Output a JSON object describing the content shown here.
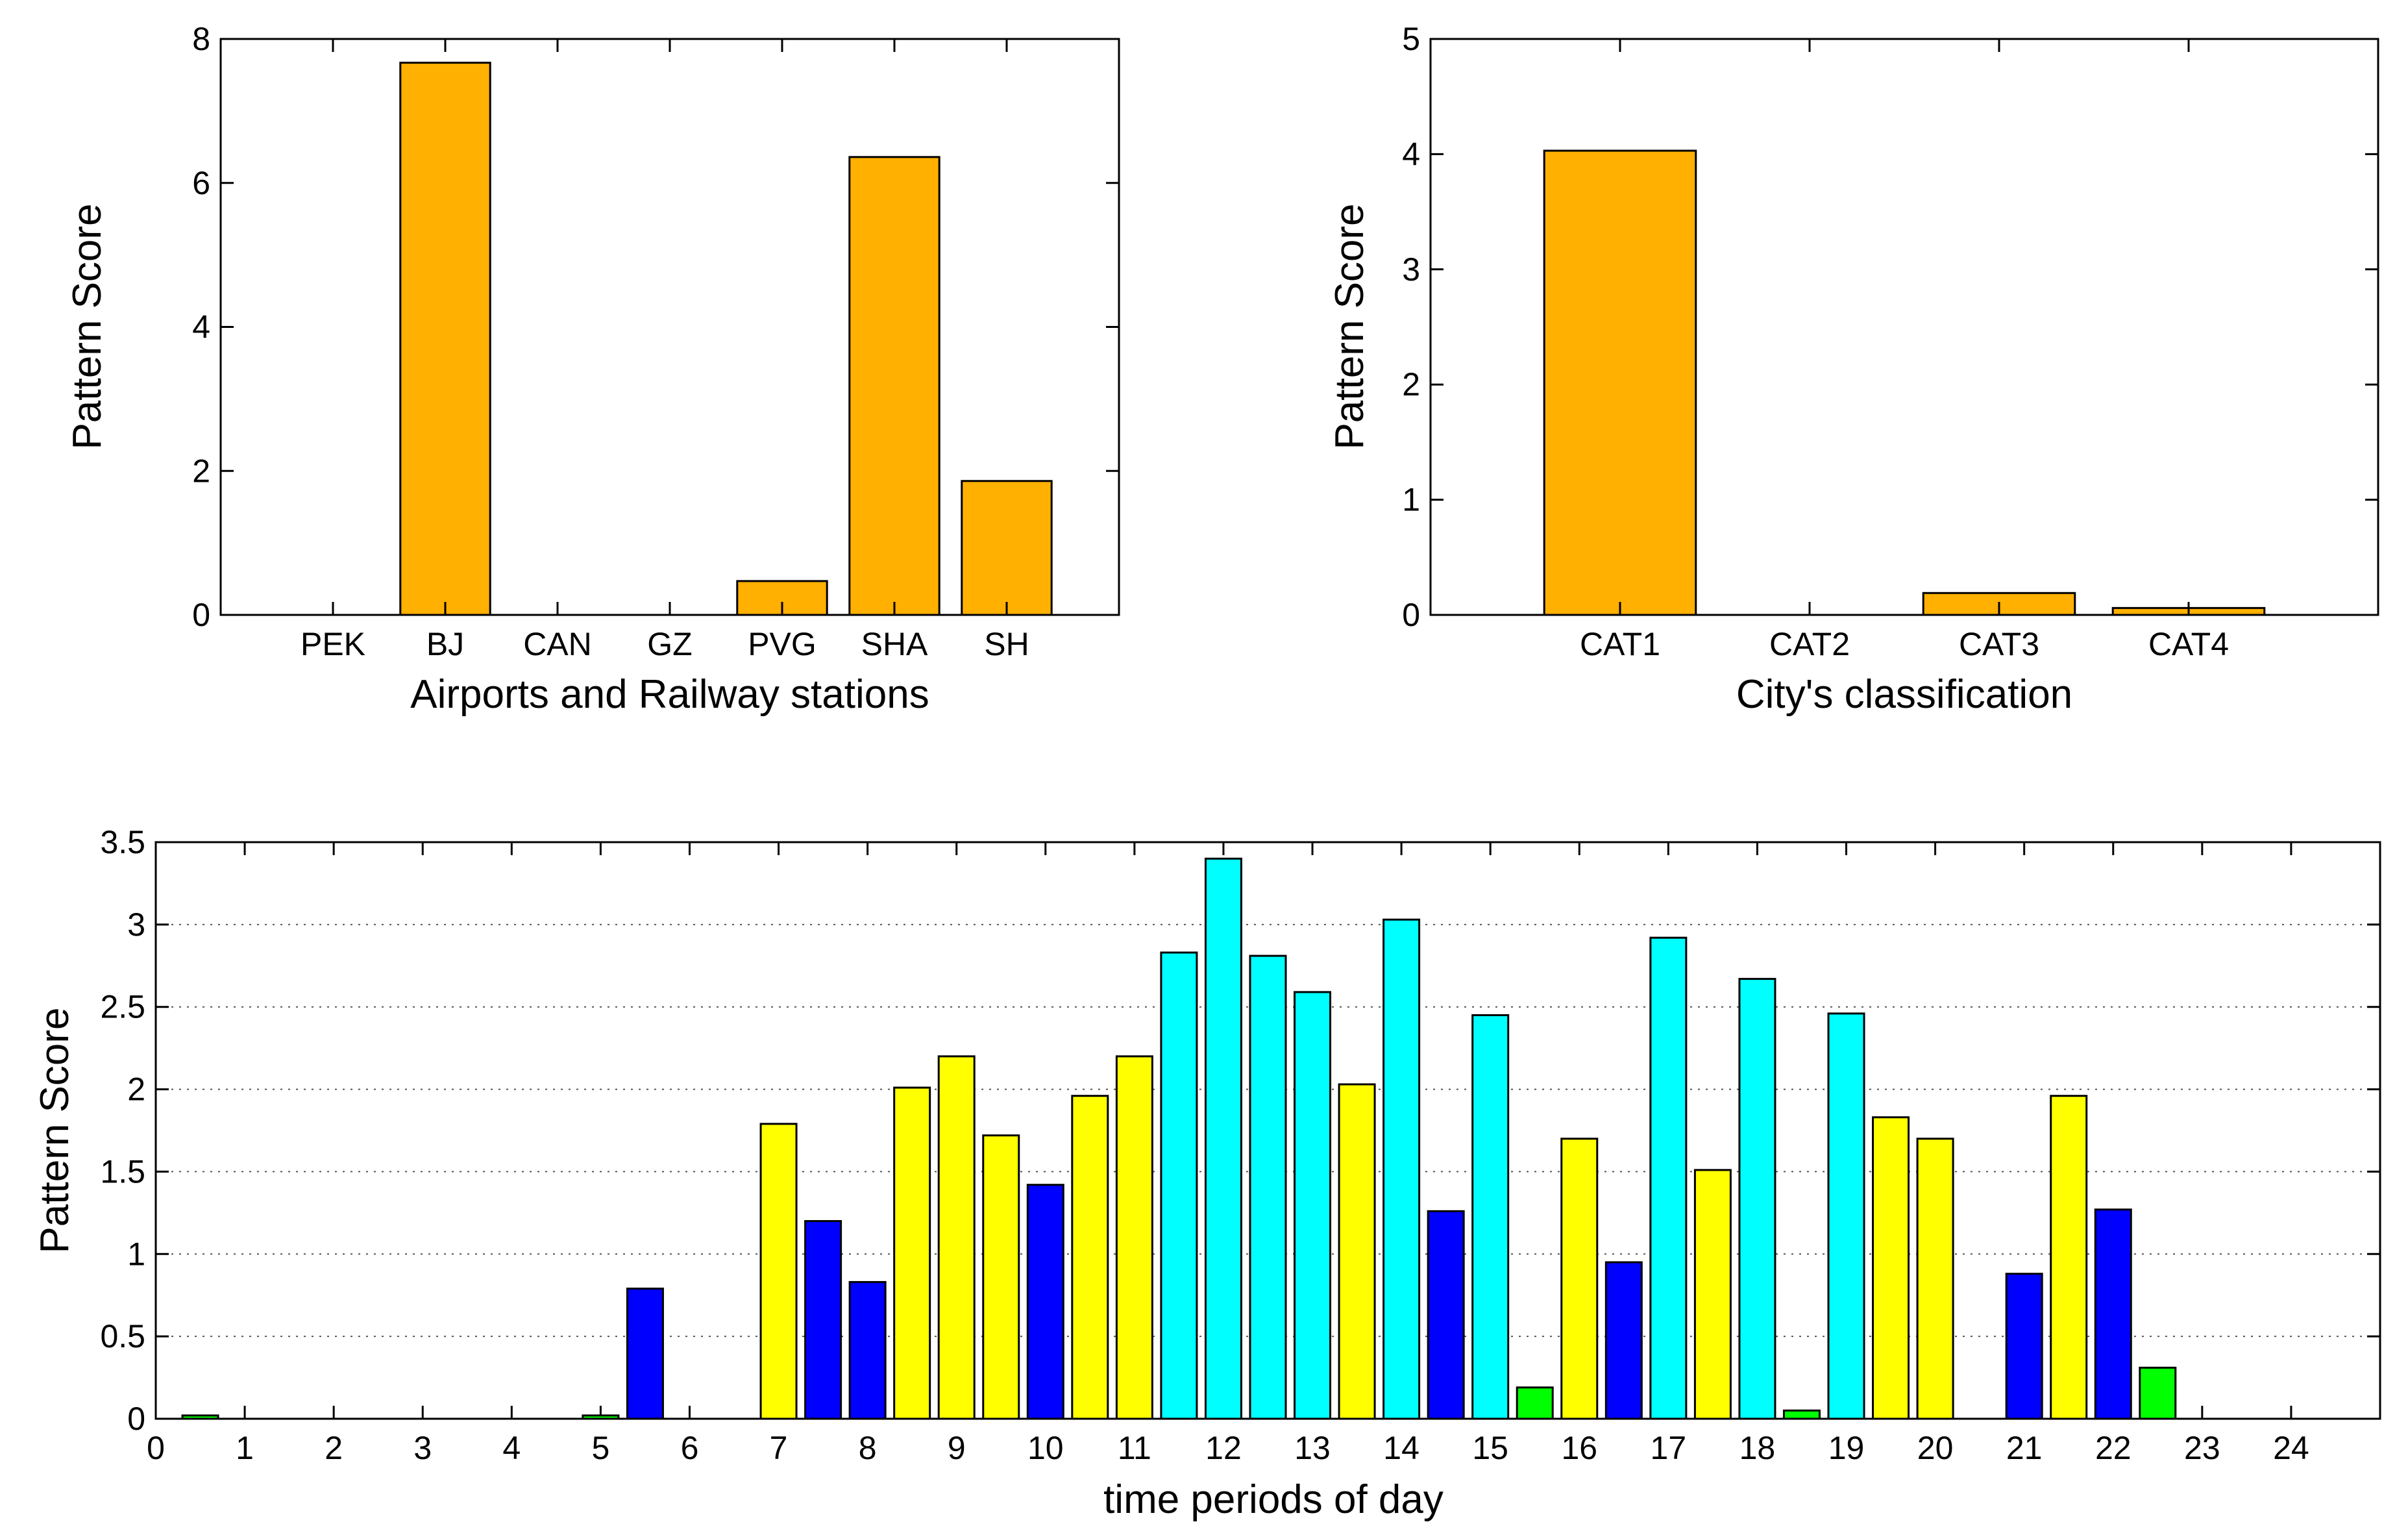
{
  "colors": {
    "orange": "#FFB000",
    "yellow": "#FFFF00",
    "cyan": "#00FFFF",
    "blue": "#0000FF",
    "green": "#00FF00",
    "edge": "#000000"
  },
  "chart_data": [
    {
      "type": "bar",
      "id": "airports",
      "xlabel": "Airports and Railway stations",
      "ylabel": "Pattern Score",
      "ylim": [
        0,
        8
      ],
      "yticks": [
        "0",
        "2",
        "4",
        "6",
        "8"
      ],
      "categories": [
        "PEK",
        "BJ",
        "CAN",
        "GZ",
        "PVG",
        "SHA",
        "SH"
      ],
      "values": [
        0,
        7.67,
        0,
        0,
        0.47,
        6.36,
        1.86
      ],
      "color_key": "orange"
    },
    {
      "type": "bar",
      "id": "city",
      "xlabel": "City's classification",
      "ylabel": "Pattern Score",
      "ylim": [
        0,
        5
      ],
      "yticks": [
        "0",
        "1",
        "2",
        "3",
        "4",
        "5"
      ],
      "categories": [
        "CAT1",
        "CAT2",
        "CAT3",
        "CAT4"
      ],
      "values": [
        4.03,
        0,
        0.19,
        0.06
      ],
      "color_key": "orange"
    },
    {
      "type": "bar",
      "id": "time",
      "xlabel": "time periods of day",
      "ylabel": "Pattern Score",
      "ylim": [
        0,
        3.5
      ],
      "yticks": [
        "0",
        "0.5",
        "1",
        "1.5",
        "2",
        "2.5",
        "3",
        "3.5"
      ],
      "xlim": [
        0,
        25
      ],
      "xticks": [
        "0",
        "1",
        "2",
        "3",
        "4",
        "5",
        "6",
        "7",
        "8",
        "9",
        "10",
        "11",
        "12",
        "13",
        "14",
        "15",
        "16",
        "17",
        "18",
        "19",
        "20",
        "21",
        "22",
        "23",
        "24"
      ],
      "grid": "dotted horizontal",
      "x": [
        0.5,
        1.5,
        2.5,
        3.5,
        4.5,
        5,
        5.5,
        7,
        7.5,
        8,
        8.5,
        9,
        9.5,
        10,
        10.5,
        11,
        11.5,
        12,
        12.5,
        13,
        13.5,
        14,
        14.5,
        15,
        15.5,
        16,
        16.5,
        17,
        17.5,
        18,
        18.5,
        19,
        19.5,
        20,
        21,
        21.5,
        22,
        22.5
      ],
      "values": [
        0.02,
        0,
        0,
        0,
        0,
        0.02,
        0.79,
        1.79,
        1.2,
        0.83,
        2.01,
        2.2,
        1.72,
        1.42,
        1.96,
        2.2,
        2.83,
        3.4,
        2.81,
        2.59,
        2.03,
        3.03,
        1.26,
        2.45,
        0.19,
        1.7,
        0.95,
        2.92,
        1.51,
        2.67,
        0.05,
        2.46,
        1.83,
        1.7,
        0.88,
        1.96,
        1.27,
        0.31
      ],
      "colors": [
        "green",
        "green",
        "green",
        "green",
        "green",
        "green",
        "blue",
        "yellow",
        "blue",
        "blue",
        "yellow",
        "yellow",
        "yellow",
        "blue",
        "yellow",
        "yellow",
        "cyan",
        "cyan",
        "cyan",
        "cyan",
        "yellow",
        "cyan",
        "blue",
        "cyan",
        "green",
        "yellow",
        "blue",
        "cyan",
        "yellow",
        "cyan",
        "green",
        "cyan",
        "yellow",
        "yellow",
        "blue",
        "yellow",
        "blue",
        "green"
      ]
    }
  ]
}
